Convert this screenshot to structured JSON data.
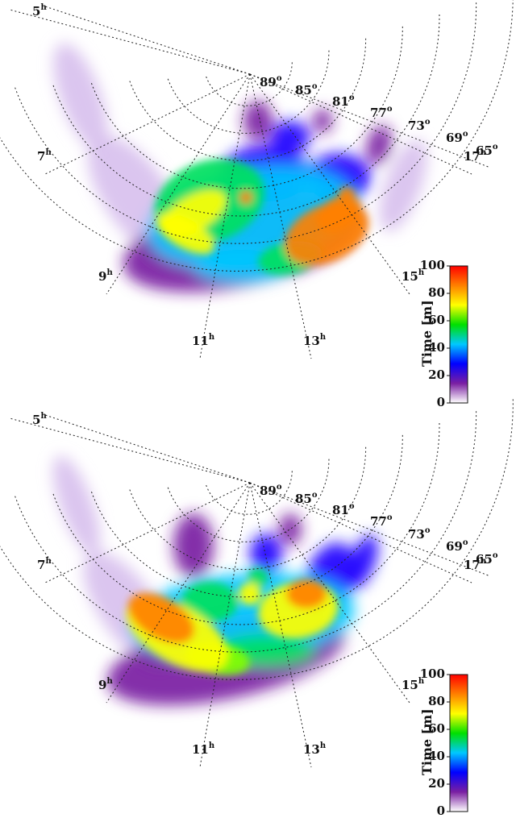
{
  "chart_data": [
    {
      "type": "heatmap",
      "projection": "polar (magnetic latitude / MLT), dayside sector",
      "latitude_labels": [
        "89°",
        "85°",
        "81°",
        "77°",
        "73°",
        "69°",
        "65°"
      ],
      "mlt_labels": [
        "5h",
        "7h",
        "9h",
        "11h",
        "13h",
        "15h",
        "17h"
      ],
      "colorbar": {
        "label": "Time [m]",
        "ticks": [
          "0",
          "20",
          "40",
          "60",
          "80",
          "100"
        ],
        "range": [
          0,
          100
        ],
        "colors": [
          "#ffffff",
          "#7a1fa2",
          "#0000ff",
          "#00c8ff",
          "#00e000",
          "#ffff00",
          "#ff8000",
          "#ff0000"
        ]
      }
    },
    {
      "type": "heatmap",
      "projection": "polar (magnetic latitude / MLT), dayside sector",
      "latitude_labels": [
        "89°",
        "85°",
        "81°",
        "77°",
        "73°",
        "69°",
        "65°"
      ],
      "mlt_labels": [
        "5h",
        "7h",
        "9h",
        "11h",
        "13h",
        "15h",
        "17h"
      ],
      "colorbar": {
        "label": "Time [m]",
        "ticks": [
          "0",
          "20",
          "40",
          "60",
          "80",
          "100"
        ],
        "range": [
          0,
          100
        ],
        "colors": [
          "#ffffff",
          "#7a1fa2",
          "#0000ff",
          "#00c8ff",
          "#00e000",
          "#ffff00",
          "#ff8000",
          "#ff0000"
        ]
      }
    }
  ]
}
